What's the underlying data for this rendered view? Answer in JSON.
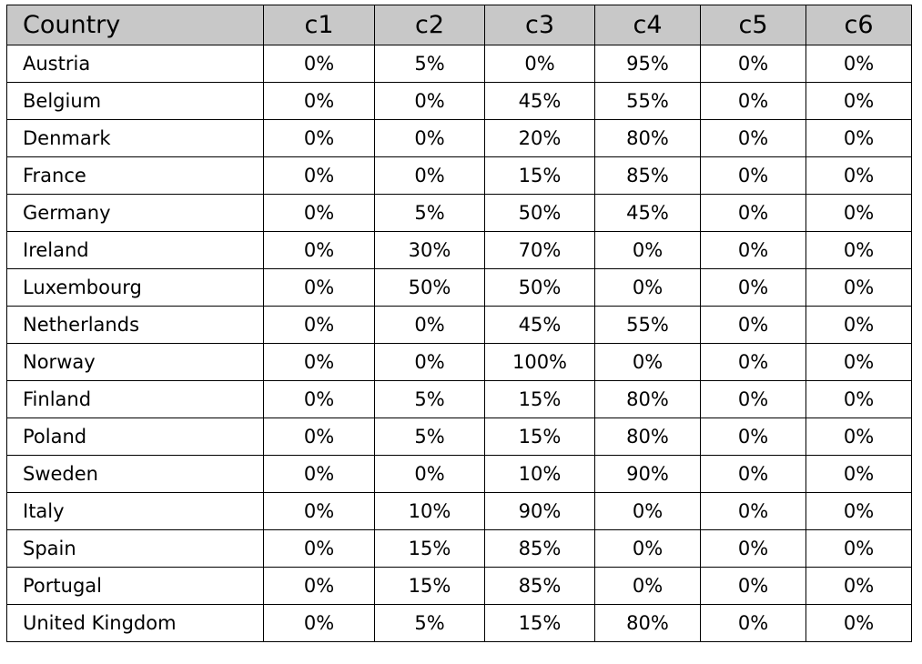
{
  "table": {
    "headers": [
      "Country",
      "c1",
      "c2",
      "c3",
      "c4",
      "c5",
      "c6"
    ],
    "rows": [
      [
        "Austria",
        "0%",
        "5%",
        "0%",
        "95%",
        "0%",
        "0%"
      ],
      [
        "Belgium",
        "0%",
        "0%",
        "45%",
        "55%",
        "0%",
        "0%"
      ],
      [
        "Denmark",
        "0%",
        "0%",
        "20%",
        "80%",
        "0%",
        "0%"
      ],
      [
        "France",
        "0%",
        "0%",
        "15%",
        "85%",
        "0%",
        "0%"
      ],
      [
        "Germany",
        "0%",
        "5%",
        "50%",
        "45%",
        "0%",
        "0%"
      ],
      [
        "Ireland",
        "0%",
        "30%",
        "70%",
        "0%",
        "0%",
        "0%"
      ],
      [
        "Luxembourg",
        "0%",
        "50%",
        "50%",
        "0%",
        "0%",
        "0%"
      ],
      [
        "Netherlands",
        "0%",
        "0%",
        "45%",
        "55%",
        "0%",
        "0%"
      ],
      [
        "Norway",
        "0%",
        "0%",
        "100%",
        "0%",
        "0%",
        "0%"
      ],
      [
        "Finland",
        "0%",
        "5%",
        "15%",
        "80%",
        "0%",
        "0%"
      ],
      [
        "Poland",
        "0%",
        "5%",
        "15%",
        "80%",
        "0%",
        "0%"
      ],
      [
        "Sweden",
        "0%",
        "0%",
        "10%",
        "90%",
        "0%",
        "0%"
      ],
      [
        "Italy",
        "0%",
        "10%",
        "90%",
        "0%",
        "0%",
        "0%"
      ],
      [
        "Spain",
        "0%",
        "15%",
        "85%",
        "0%",
        "0%",
        "0%"
      ],
      [
        "Portugal",
        "0%",
        "15%",
        "85%",
        "0%",
        "0%",
        "0%"
      ],
      [
        "United Kingdom",
        "0%",
        "5%",
        "15%",
        "80%",
        "0%",
        "0%"
      ]
    ],
    "header_bg": "#c8c8c8",
    "border_color": "#000000"
  }
}
